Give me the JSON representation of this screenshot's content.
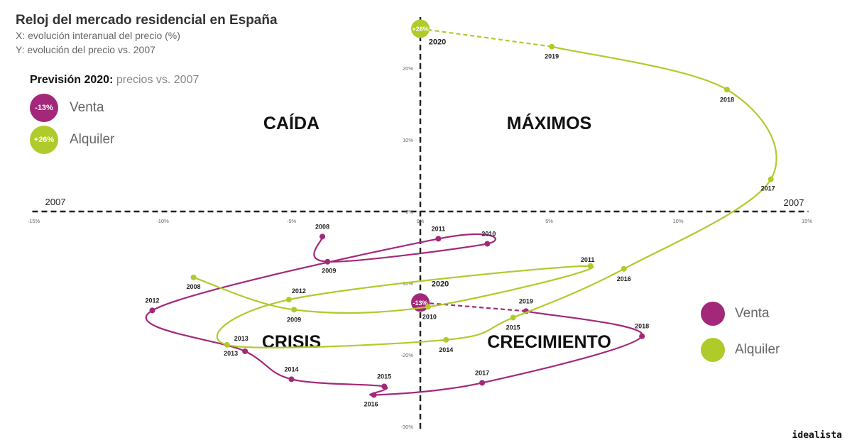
{
  "header": {
    "title": "Reloj del mercado residencial en España",
    "subtitle_x": "X: evolución interanual del precio (%)",
    "subtitle_y": "Y: evolución del precio vs. 2007"
  },
  "forecast": {
    "title": "Previsión 2020:",
    "subtitle": "precios vs. 2007",
    "items": [
      {
        "badge": "-13%",
        "label": "Venta",
        "color": "#a3287a"
      },
      {
        "badge": "+26%",
        "label": "Alquiler",
        "color": "#afcb2b"
      }
    ]
  },
  "legend": [
    {
      "label": "Venta",
      "color": "#a3287a"
    },
    {
      "label": "Alquiler",
      "color": "#afcb2b"
    }
  ],
  "brand": "idealista",
  "chart_data": {
    "type": "line",
    "xlim": [
      -15,
      15
    ],
    "ylim": [
      -30,
      26
    ],
    "x_ticks": [
      {
        "v": -15,
        "label": "-15%"
      },
      {
        "v": -10,
        "label": "-10%"
      },
      {
        "v": -5,
        "label": "-5%"
      },
      {
        "v": 0,
        "label": "0%"
      },
      {
        "v": 5,
        "label": "5%"
      },
      {
        "v": 10,
        "label": "10%"
      },
      {
        "v": 15,
        "label": "15%"
      }
    ],
    "y_ticks": [
      {
        "v": 20,
        "label": "20%"
      },
      {
        "v": 10,
        "label": "10%"
      },
      {
        "v": 0,
        "label": "0%"
      },
      {
        "v": -10,
        "label": "-10%"
      },
      {
        "v": -20,
        "label": "-20%"
      },
      {
        "v": -30,
        "label": "-30%"
      }
    ],
    "axis_end_labels": {
      "left": "2007",
      "right": "2007"
    },
    "quadrants": [
      {
        "label": "CAÍDA",
        "x": -5,
        "y": 11.5
      },
      {
        "label": "MÁXIMOS",
        "x": 5,
        "y": 11.5
      },
      {
        "label": "CRISIS",
        "x": -5,
        "y": -19
      },
      {
        "label": "CRECIMIENTO",
        "x": 5,
        "y": -19
      }
    ],
    "series": [
      {
        "name": "Venta",
        "color": "#a3287a",
        "points": [
          {
            "year": "2008",
            "x": -3.8,
            "y": -3.5
          },
          {
            "year": "2009",
            "x": -3.6,
            "y": -7.0
          },
          {
            "year": "2010",
            "x": 2.6,
            "y": -4.5
          },
          {
            "year": "2011",
            "x": 0.7,
            "y": -3.8
          },
          {
            "year": "2012",
            "x": -10.4,
            "y": -13.8
          },
          {
            "year": "2013",
            "x": -6.8,
            "y": -19.5
          },
          {
            "year": "2014",
            "x": -5.0,
            "y": -23.4
          },
          {
            "year": "2015",
            "x": -1.4,
            "y": -24.4
          },
          {
            "year": "2016",
            "x": -1.8,
            "y": -25.6
          },
          {
            "year": "2017",
            "x": 2.4,
            "y": -23.9
          },
          {
            "year": "2018",
            "x": 8.6,
            "y": -17.4
          },
          {
            "year": "2019",
            "x": 4.1,
            "y": -13.9
          },
          {
            "year": "2020",
            "x": 0.0,
            "y": -12.7,
            "forecast": true,
            "badge": "-13%"
          }
        ]
      },
      {
        "name": "Alquiler",
        "color": "#afcb2b",
        "points": [
          {
            "year": "2008",
            "x": -8.8,
            "y": -9.2
          },
          {
            "year": "2009",
            "x": -4.9,
            "y": -13.7
          },
          {
            "year": "2010",
            "x": 0.3,
            "y": -13.3
          },
          {
            "year": "2011",
            "x": 6.6,
            "y": -7.6
          },
          {
            "year": "2012",
            "x": -5.1,
            "y": -12.3
          },
          {
            "year": "2013",
            "x": -7.5,
            "y": -18.6
          },
          {
            "year": "2014",
            "x": 1.0,
            "y": -17.9
          },
          {
            "year": "2015",
            "x": 3.6,
            "y": -14.8
          },
          {
            "year": "2016",
            "x": 7.9,
            "y": -8.0
          },
          {
            "year": "2017",
            "x": 13.6,
            "y": 4.5
          },
          {
            "year": "2018",
            "x": 11.9,
            "y": 17.0
          },
          {
            "year": "2019",
            "x": 5.1,
            "y": 23.0
          },
          {
            "year": "2020",
            "x": 0.0,
            "y": 25.5,
            "forecast": true,
            "badge": "+26%"
          }
        ]
      }
    ]
  }
}
